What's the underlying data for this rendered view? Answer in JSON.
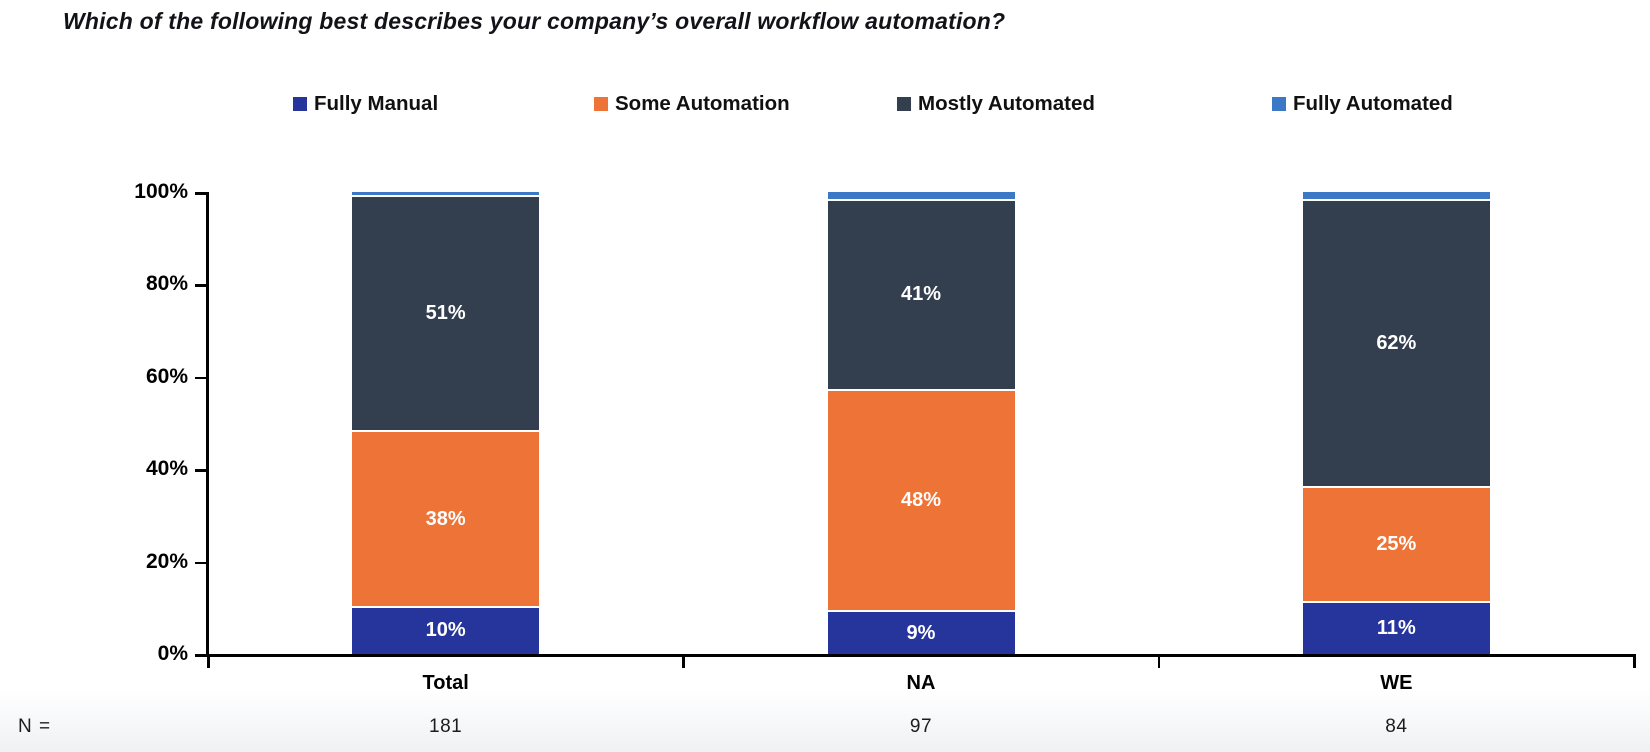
{
  "title": "Which of the following best describes your company’s overall workflow automation?",
  "legend": {
    "items": [
      {
        "label": "Fully Manual",
        "color": "#25359C"
      },
      {
        "label": "Some Automation",
        "color": "#ED7337"
      },
      {
        "label": "Mostly Automated",
        "color": "#333E4F"
      },
      {
        "label": "Fully Automated",
        "color": "#3B78C6"
      }
    ]
  },
  "chart_data": {
    "type": "bar",
    "subtype": "stacked-100-percent-column",
    "title": "Which of the following best describes your company’s overall workflow automation?",
    "categories": [
      "Total",
      "NA",
      "WE"
    ],
    "series": [
      {
        "name": "Fully Manual",
        "color": "#25359C",
        "values": [
          10,
          9,
          11
        ],
        "labels": [
          "10%",
          "9%",
          "11%"
        ]
      },
      {
        "name": "Some Automation",
        "color": "#ED7337",
        "values": [
          38,
          48,
          25
        ],
        "labels": [
          "38%",
          "48%",
          "25%"
        ]
      },
      {
        "name": "Mostly Automated",
        "color": "#333E4F",
        "values": [
          51,
          41,
          62
        ],
        "labels": [
          "51%",
          "41%",
          "62%"
        ]
      },
      {
        "name": "Fully Automated",
        "color": "#3B78C6",
        "values": [
          1,
          2,
          2
        ],
        "labels": [
          "",
          "",
          ""
        ]
      }
    ],
    "xlabel": "",
    "ylabel": "",
    "ylim": [
      0,
      100
    ],
    "yticks": [
      "0%",
      "20%",
      "40%",
      "60%",
      "80%",
      "100%"
    ],
    "grid": false,
    "legend_position": "top"
  },
  "footer": {
    "label": "N =",
    "values": [
      "181",
      "97",
      "84"
    ]
  }
}
